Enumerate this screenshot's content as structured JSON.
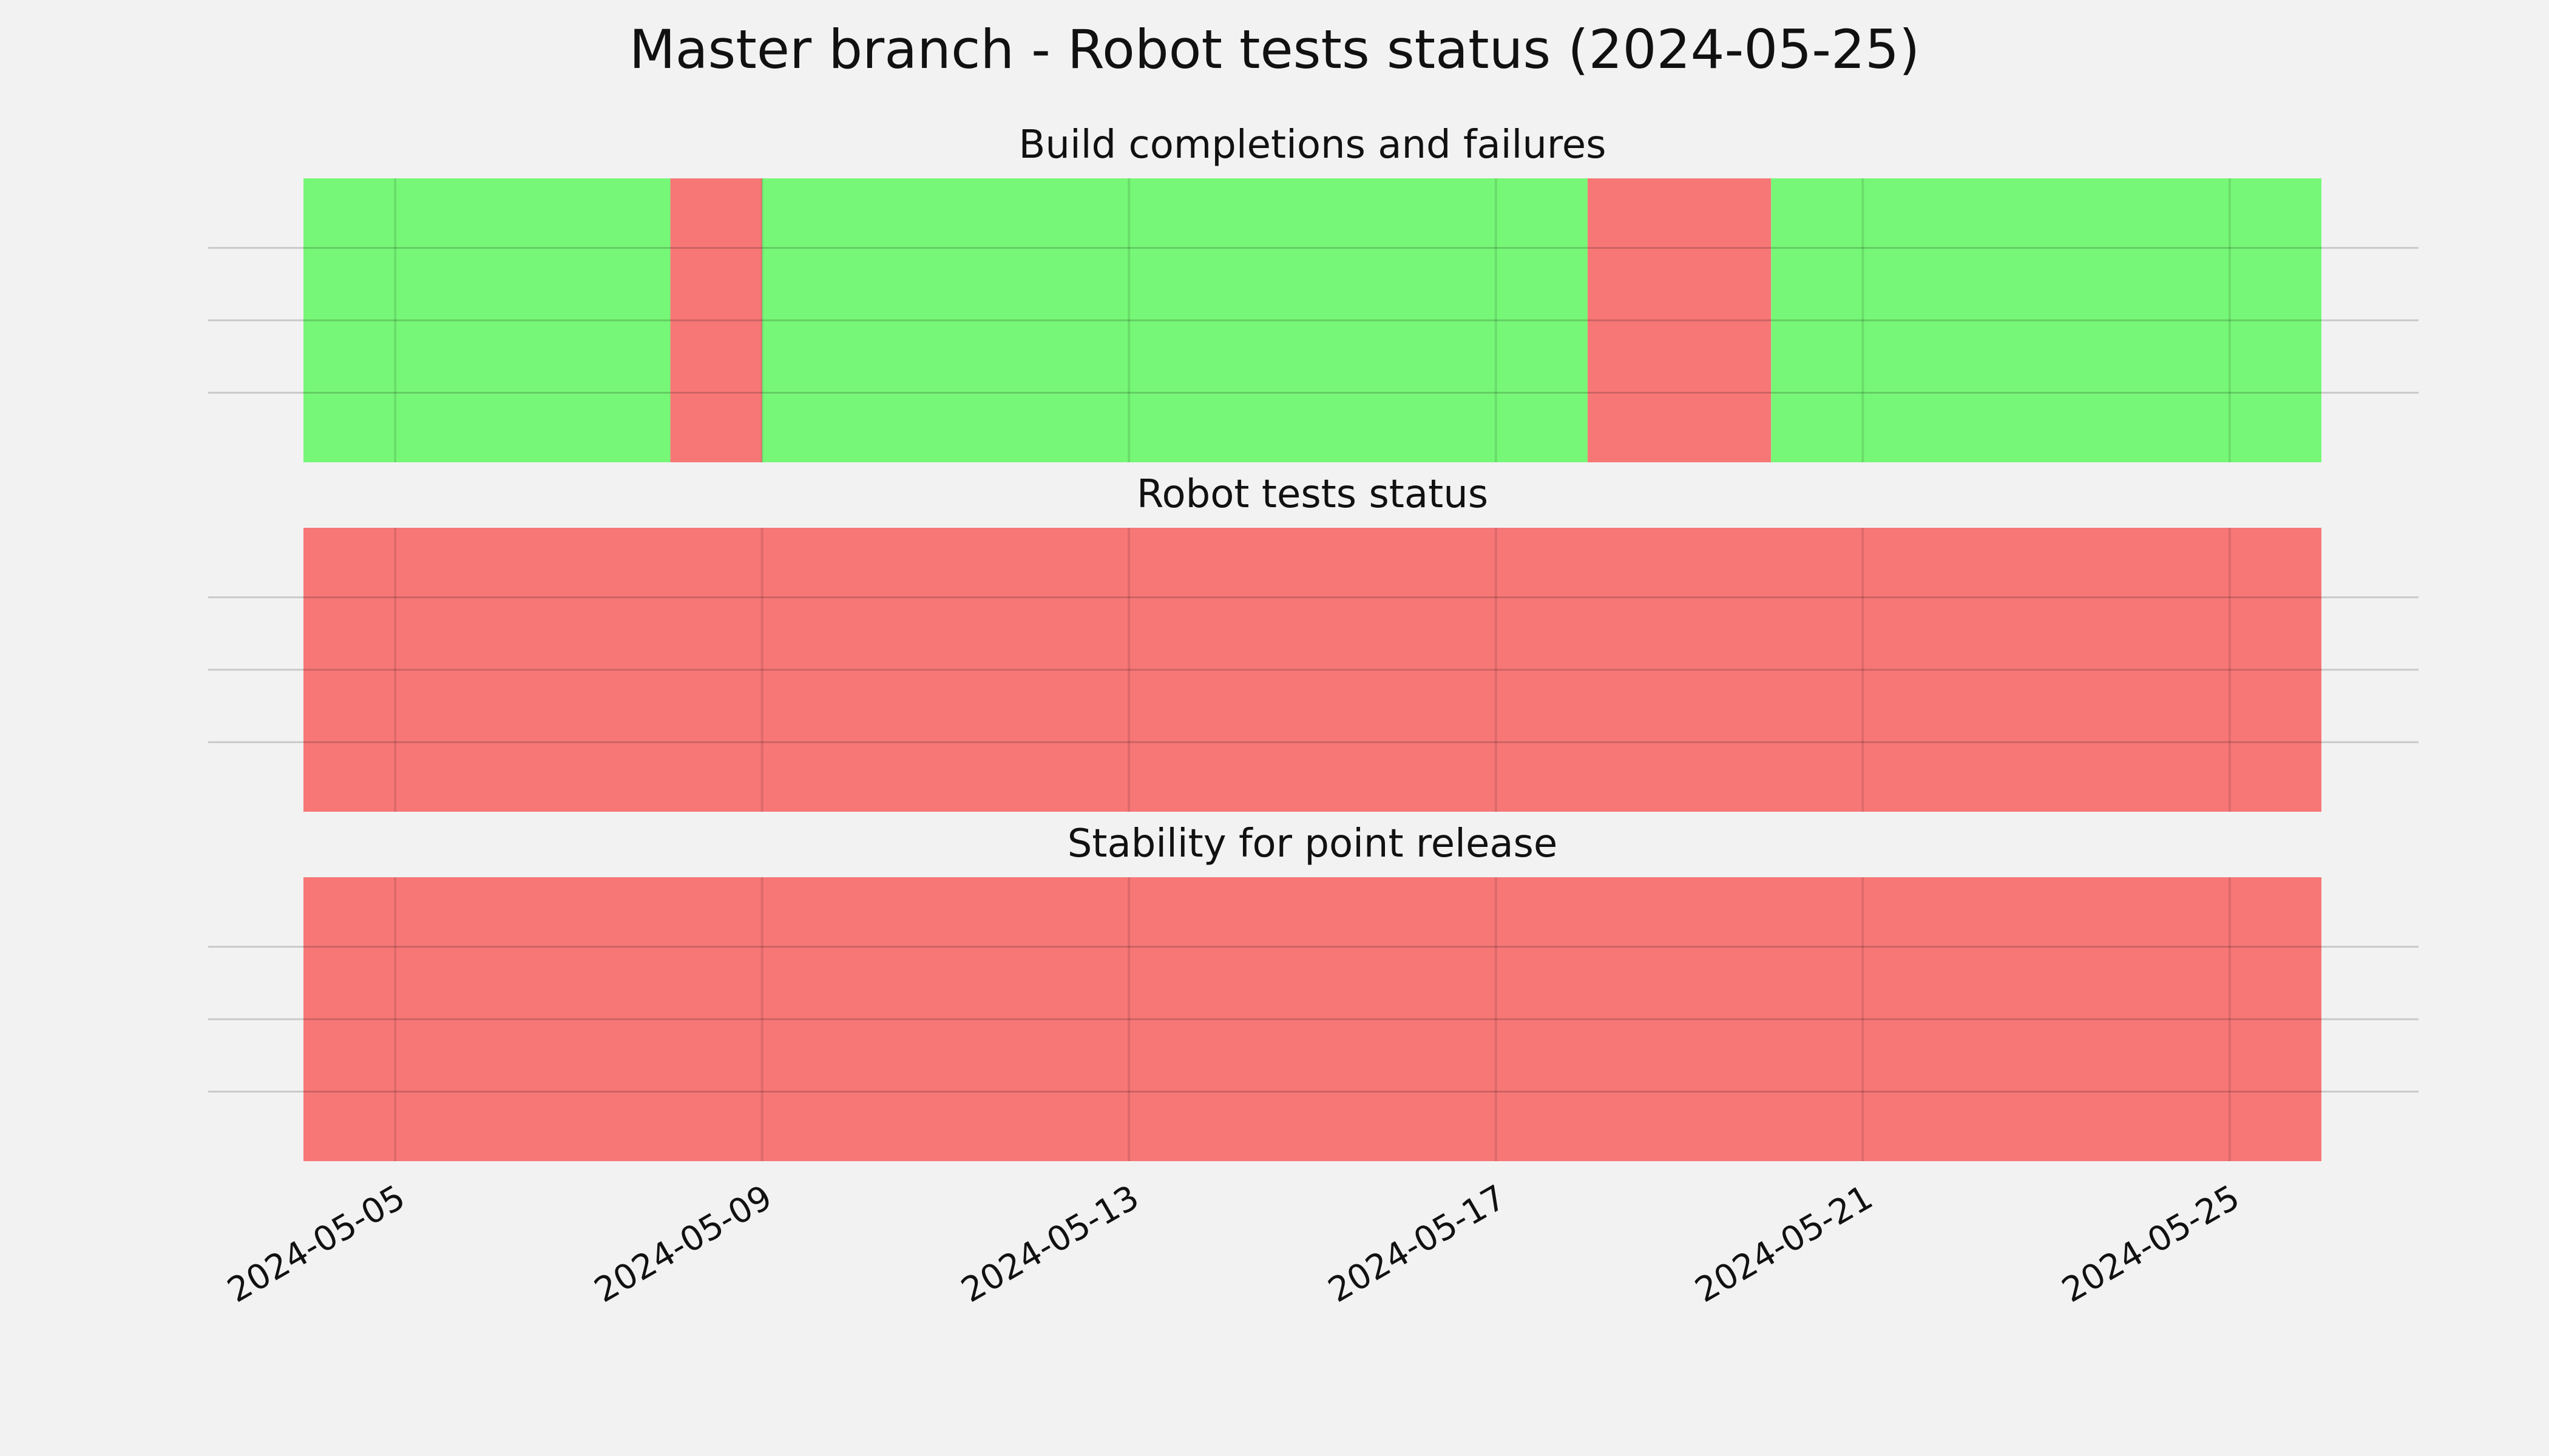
{
  "chart_data": {
    "type": "timeline",
    "title": "Master branch - Robot tests status (2024-05-25)",
    "x_axis": {
      "type": "date",
      "range": [
        "2024-05-04",
        "2024-05-26"
      ],
      "ticks": [
        "2024-05-05",
        "2024-05-09",
        "2024-05-13",
        "2024-05-17",
        "2024-05-21",
        "2024-05-25"
      ]
    },
    "grid": true,
    "colors": {
      "pass": "#77f777",
      "fail": "#f77777"
    },
    "panels": [
      {
        "title": "Build completions and failures",
        "segments": [
          {
            "start": "2024-05-04",
            "end": "2024-05-08",
            "status": "pass"
          },
          {
            "start": "2024-05-08",
            "end": "2024-05-09",
            "status": "fail"
          },
          {
            "start": "2024-05-09",
            "end": "2024-05-18",
            "status": "pass"
          },
          {
            "start": "2024-05-18",
            "end": "2024-05-20",
            "status": "fail"
          },
          {
            "start": "2024-05-20",
            "end": "2024-05-26",
            "status": "pass"
          }
        ]
      },
      {
        "title": "Robot tests status",
        "segments": [
          {
            "start": "2024-05-04",
            "end": "2024-05-26",
            "status": "fail"
          }
        ]
      },
      {
        "title": "Stability for point release",
        "segments": [
          {
            "start": "2024-05-04",
            "end": "2024-05-26",
            "status": "fail"
          }
        ]
      }
    ]
  }
}
